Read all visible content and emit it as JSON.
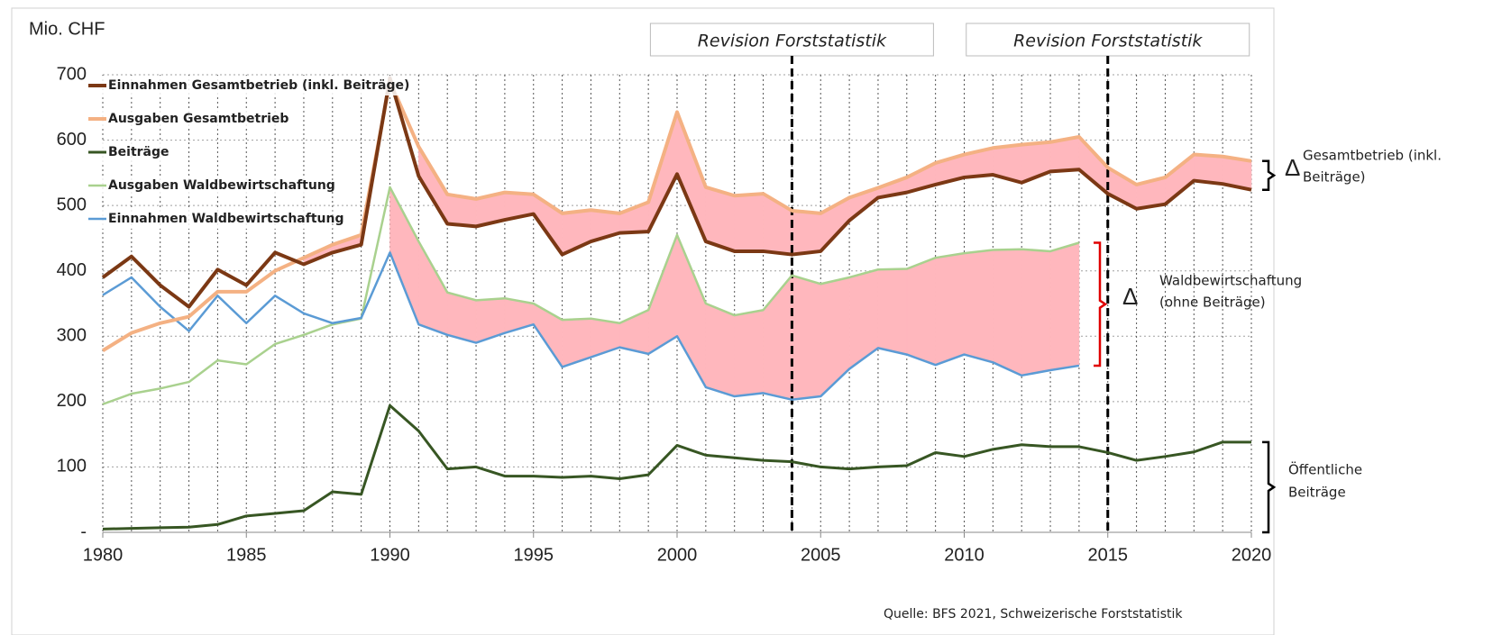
{
  "chart_data": {
    "type": "line",
    "y_label": "Mio. CHF",
    "source": "Quelle: BFS 2021, Schweizerische Forststatistik",
    "x": [
      1980,
      1981,
      1982,
      1983,
      1984,
      1985,
      1986,
      1987,
      1988,
      1989,
      1990,
      1991,
      1992,
      1993,
      1994,
      1995,
      1996,
      1997,
      1998,
      1999,
      2000,
      2001,
      2002,
      2003,
      2004,
      2005,
      2006,
      2007,
      2008,
      2009,
      2010,
      2011,
      2012,
      2013,
      2014,
      2015,
      2016,
      2017,
      2018,
      2019,
      2020
    ],
    "xlim": [
      1980,
      2020
    ],
    "xticks": [
      1980,
      1985,
      1990,
      1995,
      2000,
      2005,
      2010,
      2015,
      2020
    ],
    "ylim": [
      0,
      700
    ],
    "yticks": [
      {
        "value": 0,
        "label": "-"
      },
      100,
      200,
      300,
      400,
      500,
      600,
      700
    ],
    "grid": true,
    "fill_color": "#ffb7bd",
    "series": [
      {
        "name": "Einnahmen Gesamtbetrieb (inkl. Beiträge)",
        "color": "#7b3814",
        "width": 4,
        "values": [
          390,
          422,
          378,
          345,
          402,
          378,
          428,
          410,
          428,
          440,
          695,
          545,
          472,
          468,
          478,
          487,
          425,
          445,
          458,
          460,
          548,
          445,
          430,
          430,
          425,
          430,
          477,
          512,
          520,
          532,
          543,
          547,
          535,
          552,
          555,
          518,
          495,
          502,
          538,
          533,
          524
        ]
      },
      {
        "name": "Ausgaben Gesamtbetrieb",
        "color": "#f4b183",
        "width": 4,
        "values": [
          278,
          305,
          320,
          330,
          368,
          368,
          400,
          420,
          440,
          455,
          690,
          590,
          517,
          510,
          520,
          517,
          488,
          493,
          488,
          505,
          643,
          528,
          515,
          518,
          492,
          488,
          512,
          527,
          543,
          565,
          578,
          588,
          593,
          597,
          605,
          558,
          532,
          543,
          578,
          575,
          568
        ]
      },
      {
        "name": "Beiträge",
        "color": "#375623",
        "width": 3,
        "values": [
          5,
          6,
          7,
          8,
          12,
          25,
          29,
          33,
          62,
          58,
          194,
          155,
          97,
          100,
          86,
          86,
          84,
          86,
          82,
          88,
          133,
          118,
          114,
          110,
          108,
          100,
          97,
          100,
          102,
          122,
          116,
          127,
          134,
          131,
          131,
          122,
          110,
          116,
          123,
          138,
          138
        ]
      },
      {
        "name": "Ausgaben Waldbewirtschaftung",
        "color": "#a9d18e",
        "width": 2.5,
        "values": [
          196,
          212,
          220,
          230,
          263,
          257,
          288,
          302,
          318,
          327,
          528,
          445,
          367,
          355,
          358,
          350,
          325,
          327,
          320,
          340,
          455,
          350,
          332,
          340,
          393,
          380,
          390,
          402,
          403,
          420,
          427,
          432,
          433,
          430,
          443,
          null,
          null,
          null,
          null,
          null,
          null
        ]
      },
      {
        "name": "Einnahmen Waldbewirtschaftung",
        "color": "#5b9bd5",
        "width": 2.5,
        "values": [
          363,
          390,
          345,
          308,
          362,
          320,
          362,
          335,
          320,
          328,
          428,
          318,
          302,
          290,
          305,
          318,
          253,
          268,
          283,
          273,
          300,
          222,
          208,
          213,
          203,
          208,
          250,
          282,
          272,
          256,
          272,
          260,
          240,
          248,
          255,
          null,
          null,
          null,
          null,
          null,
          null
        ]
      }
    ],
    "revisions": [
      {
        "x": 2004,
        "label": "Revision Forststatistik"
      },
      {
        "x": 2015,
        "label": "Revision Forststatistik"
      }
    ],
    "delta": "Δ",
    "note_gesamt": [
      "Gesamtbetrieb (inkl.",
      "Beiträge)"
    ],
    "note_wald": [
      "Waldbewirtschaftung",
      "(ohne Beiträge)"
    ],
    "note_wald_color": "#e00000",
    "note_beitraege": [
      "Öffentliche",
      "Beiträge"
    ]
  }
}
